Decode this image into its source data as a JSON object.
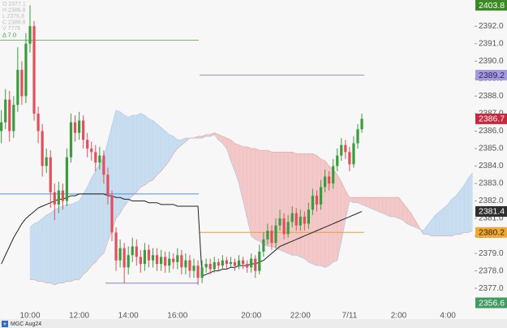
{
  "chart_data": {
    "type": "candlestick",
    "symbol": "MGC Aug24",
    "legend_lines": [
      "O 2377.1",
      "H 2386.8",
      "L 2376.8",
      "C 2386.8",
      "V 7776"
    ],
    "delta": "Δ   7.0",
    "up_color": "#3d9b3f",
    "down_color": "#e0505a",
    "categories": [
      null,
      null,
      null,
      null,
      null,
      null,
      null,
      "10:00",
      null,
      null,
      null,
      null,
      null,
      null,
      null,
      null,
      null,
      null,
      null,
      "12:00",
      null,
      null,
      null,
      null,
      null,
      null,
      null,
      null,
      null,
      null,
      null,
      "14:00",
      null,
      null,
      null,
      null,
      null,
      null,
      null,
      null,
      null,
      null,
      null,
      "16:00",
      null,
      null,
      null,
      null,
      null,
      null,
      null,
      null,
      null,
      null,
      null,
      null,
      null,
      null,
      null,
      null,
      null,
      "20:00",
      null,
      null,
      null,
      null,
      null,
      null,
      null,
      null,
      null,
      null,
      null,
      "22:00",
      null,
      null,
      null,
      null,
      null,
      null,
      null,
      null,
      null,
      null,
      null,
      "7/11",
      null,
      null,
      null,
      null,
      null,
      null,
      null,
      null,
      null,
      null,
      null,
      "2:00",
      null,
      null,
      null,
      null,
      null,
      null,
      null,
      null,
      null,
      null,
      null,
      "4:00",
      null,
      null,
      null,
      null,
      null,
      null
    ],
    "open": [
      2386.0,
      2386.5,
      2387.8,
      2386.0,
      2387.5,
      2389.5,
      2388.0,
      2391.0,
      2392.0,
      2387.0,
      2386.0,
      2384.0,
      2384.5,
      2382.5,
      2381.8,
      2382.6,
      2382.0,
      2384.5,
      2386.5,
      2385.9,
      2386.6,
      2385.5,
      2385.0,
      2384.8,
      2384.2,
      2384.6,
      2383.5,
      2382.3,
      2380.2,
      2378.6,
      2379.3,
      2378.2,
      2378.9,
      2379.4,
      2378.8,
      2378.4,
      2379.2,
      2378.6,
      2378.9,
      2378.4,
      2378.8,
      2378.3,
      2378.7,
      2378.5,
      2378.9,
      2378.2,
      2378.6,
      2378.0,
      2378.3,
      2377.6,
      2378.2,
      2378.4,
      2378.1,
      2378.5,
      2378.3,
      2378.6,
      2378.4,
      2378.5,
      2378.3,
      2378.6,
      2378.4,
      2378.2,
      2378.7,
      2378.0,
      2379.1,
      2379.8,
      2380.3,
      2379.6,
      2380.6,
      2381.0,
      2380.1,
      2380.8,
      2381.3,
      2380.6,
      2381.1,
      2380.7,
      2381.5,
      2382.3,
      2381.8,
      2382.8,
      2383.4,
      2383.0,
      2384.0,
      2384.6,
      2385.2,
      2384.8,
      2384.1,
      2385.3,
      2386.1,
      null,
      null,
      null,
      null,
      null,
      null,
      null,
      null,
      null,
      null,
      null,
      null,
      null,
      null,
      null,
      null,
      null,
      null,
      null,
      null,
      null,
      null,
      null,
      null,
      null,
      null,
      null
    ],
    "high": [
      2387.2,
      2388.4,
      2388.3,
      2388.0,
      2390.8,
      2390.0,
      2391.6,
      2393.2,
      2392.3,
      2387.4,
      2386.4,
      2385.0,
      2384.9,
      2383.0,
      2383.1,
      2383.0,
      2385.0,
      2387.0,
      2386.9,
      2387.1,
      2386.9,
      2385.9,
      2385.4,
      2385.2,
      2385.1,
      2384.9,
      2383.9,
      2382.6,
      2380.5,
      2379.8,
      2379.6,
      2379.4,
      2379.9,
      2379.8,
      2379.2,
      2379.6,
      2379.5,
      2379.3,
      2379.3,
      2379.2,
      2379.1,
      2379.1,
      2379.0,
      2379.3,
      2379.2,
      2379.0,
      2378.9,
      2378.7,
      2378.6,
      2378.6,
      2378.7,
      2378.7,
      2378.8,
      2378.7,
      2378.9,
      2378.8,
      2378.8,
      2378.7,
      2378.9,
      2378.8,
      2378.6,
      2379.0,
      2378.9,
      2379.5,
      2380.2,
      2380.7,
      2380.6,
      2381.0,
      2381.5,
      2381.3,
      2381.2,
      2381.7,
      2381.6,
      2381.5,
      2381.4,
      2381.9,
      2382.7,
      2382.6,
      2383.2,
      2383.8,
      2383.7,
      2384.4,
      2385.0,
      2385.6,
      2385.5,
      2385.1,
      2385.7,
      2386.4,
      2387.0,
      null,
      null,
      null,
      null,
      null,
      null,
      null,
      null,
      null,
      null,
      null,
      null,
      null,
      null,
      null,
      null,
      null,
      null,
      null,
      null,
      null,
      null,
      null,
      null,
      null,
      null,
      null
    ],
    "low": [
      2385.3,
      2386.1,
      2385.4,
      2385.6,
      2387.1,
      2387.5,
      2387.6,
      2390.5,
      2386.6,
      2385.3,
      2383.4,
      2383.6,
      2381.6,
      2380.9,
      2381.3,
      2381.5,
      2381.7,
      2384.2,
      2385.4,
      2385.5,
      2385.0,
      2384.5,
      2384.3,
      2383.7,
      2383.8,
      2383.0,
      2381.8,
      2379.7,
      2378.0,
      2378.2,
      2377.3,
      2377.8,
      2378.5,
      2378.3,
      2377.9,
      2378.0,
      2378.2,
      2378.2,
      2378.0,
      2378.0,
      2377.9,
      2377.9,
      2378.1,
      2378.1,
      2377.8,
      2377.8,
      2377.6,
      2377.6,
      2377.2,
      2377.3,
      2377.9,
      2377.8,
      2377.9,
      2378.0,
      2378.1,
      2378.1,
      2378.2,
      2378.0,
      2378.1,
      2378.1,
      2377.9,
      2377.9,
      2377.6,
      2377.8,
      2378.8,
      2379.5,
      2379.2,
      2379.3,
      2380.3,
      2379.8,
      2379.9,
      2380.5,
      2380.3,
      2380.3,
      2380.3,
      2380.4,
      2381.2,
      2381.4,
      2381.5,
      2382.5,
      2382.6,
      2382.7,
      2383.7,
      2384.3,
      2384.4,
      2383.7,
      2383.9,
      2385.0,
      2385.9,
      null,
      null,
      null,
      null,
      null,
      null,
      null,
      null,
      null,
      null,
      null,
      null,
      null,
      null,
      null,
      null,
      null,
      null,
      null,
      null,
      null,
      null,
      null,
      null,
      null,
      null,
      null
    ],
    "close": [
      2386.5,
      2387.8,
      2386.0,
      2387.5,
      2389.5,
      2388.0,
      2391.0,
      2392.0,
      2387.0,
      2386.0,
      2384.0,
      2384.5,
      2382.5,
      2381.8,
      2382.6,
      2382.0,
      2384.5,
      2386.5,
      2385.9,
      2386.6,
      2385.5,
      2385.0,
      2384.8,
      2384.2,
      2384.6,
      2383.5,
      2382.3,
      2380.2,
      2378.6,
      2379.3,
      2378.2,
      2378.9,
      2379.4,
      2378.8,
      2378.4,
      2379.2,
      2378.6,
      2378.9,
      2378.4,
      2378.8,
      2378.3,
      2378.7,
      2378.5,
      2378.9,
      2378.2,
      2378.6,
      2378.0,
      2378.3,
      2377.6,
      2378.2,
      2378.4,
      2378.1,
      2378.5,
      2378.3,
      2378.6,
      2378.4,
      2378.5,
      2378.3,
      2378.6,
      2378.4,
      2378.2,
      2378.7,
      2378.0,
      2379.1,
      2379.8,
      2380.3,
      2379.6,
      2380.6,
      2381.0,
      2380.1,
      2380.8,
      2381.3,
      2380.6,
      2381.1,
      2380.7,
      2381.5,
      2382.3,
      2381.8,
      2382.8,
      2383.4,
      2383.0,
      2384.0,
      2384.6,
      2385.2,
      2384.8,
      2384.1,
      2385.3,
      2386.1,
      2386.7,
      null,
      null,
      null,
      null,
      null,
      null,
      null,
      null,
      null,
      null,
      null,
      null,
      null,
      null,
      null,
      null,
      null,
      null,
      null,
      null,
      null,
      null,
      null,
      null,
      null,
      null,
      null
    ],
    "vwap": {
      "color": "#222222",
      "values": [
        2378.4,
        2378.9,
        2379.4,
        2379.9,
        2380.3,
        2380.7,
        2381.0,
        2381.2,
        2381.4,
        2381.6,
        2381.7,
        2381.8,
        2381.9,
        2382.0,
        2382.1,
        2382.1,
        2382.2,
        2382.3,
        2382.3,
        2382.4,
        2382.4,
        2382.4,
        2382.4,
        2382.4,
        2382.4,
        2382.4,
        2382.3,
        2382.3,
        2382.2,
        2382.2,
        2382.1,
        2382.1,
        2382.0,
        2382.0,
        2382.0,
        2382.0,
        2381.9,
        2381.9,
        2381.9,
        2381.8,
        2381.8,
        2381.8,
        2381.8,
        2381.7,
        2381.7,
        2381.7,
        2381.7,
        2381.7,
        2381.7,
        2377.7,
        2377.8,
        2377.9,
        2378.0,
        2378.0,
        2378.1,
        2378.1,
        2378.2,
        2378.2,
        2378.3,
        2378.3,
        2378.3,
        2378.4,
        2378.4,
        2378.5,
        2378.6,
        2378.8,
        2379.0,
        2379.2,
        2379.4,
        2379.5,
        2379.6,
        2379.7,
        2379.8,
        2379.9,
        2380.0,
        2380.1,
        2380.2,
        2380.3,
        2380.4,
        2380.5,
        2380.6,
        2380.7,
        2380.8,
        2380.9,
        2381.0,
        2381.1,
        2381.2,
        2381.3,
        2381.4,
        null,
        null,
        null,
        null,
        null,
        null,
        null,
        null,
        null,
        null,
        null,
        null,
        null,
        null,
        null,
        null,
        null,
        null,
        null,
        null,
        null,
        null,
        null,
        null,
        null,
        null,
        null
      ]
    },
    "cloud": {
      "up_color": "#b9d6ee",
      "down_color": "#f2b9b9",
      "span_a": [
        null,
        null,
        null,
        null,
        null,
        null,
        null,
        2380.5,
        2380.7,
        2380.8,
        2381.0,
        2381.2,
        2381.3,
        2381.5,
        2381.6,
        2381.7,
        2381.8,
        2381.8,
        2381.9,
        2382.0,
        2382.4,
        2382.8,
        2383.3,
        2383.7,
        2384.1,
        2384.5,
        2385.4,
        2386.3,
        2387.2,
        2387.1,
        2386.9,
        2386.8,
        2386.9,
        2386.9,
        2387.0,
        2386.9,
        2386.7,
        2386.6,
        2386.4,
        2386.2,
        2386.0,
        2385.8,
        2385.7,
        2385.5,
        2385.5,
        2385.6,
        2385.6,
        2385.6,
        2385.6,
        2385.6,
        2385.7,
        2385.7,
        2385.8,
        2385.5,
        2385.3,
        2385.0,
        2384.3,
        2383.7,
        2383.0,
        2382.0,
        2381.0,
        2380.0,
        2379.8,
        2379.7,
        2379.5,
        2379.4,
        2379.4,
        2379.3,
        2379.2,
        2379.1,
        2379.0,
        2378.9,
        2378.9,
        2378.8,
        2378.7,
        2378.5,
        2378.4,
        2378.3,
        2378.3,
        2378.2,
        2378.3,
        2378.5,
        2378.6,
        2379.7,
        2380.9,
        2382.0,
        2381.9,
        2381.9,
        2381.8,
        2381.7,
        2381.6,
        2381.5,
        2381.4,
        2381.3,
        2381.2,
        2381.1,
        2381.1,
        2381.0,
        2380.9,
        2380.7,
        2380.6,
        2380.5,
        2380.4,
        2380.3,
        2380.6,
        2380.9,
        2381.2,
        2381.4,
        2381.6,
        2381.8,
        2382.1,
        2382.3,
        2382.6,
        2382.9,
        2383.3,
        2383.6
      ],
      "span_b": [
        null,
        null,
        null,
        null,
        null,
        null,
        null,
        2377.5,
        2377.5,
        2377.4,
        2377.4,
        2377.3,
        2377.3,
        2377.2,
        2377.3,
        2377.3,
        2377.4,
        2377.4,
        2377.5,
        2377.5,
        2377.8,
        2378.0,
        2378.3,
        2378.5,
        2378.8,
        2379.0,
        2379.7,
        2380.3,
        2381.0,
        2381.3,
        2381.7,
        2382.0,
        2382.3,
        2382.5,
        2382.8,
        2382.9,
        2383.1,
        2383.2,
        2383.5,
        2383.7,
        2384.0,
        2384.3,
        2384.7,
        2385.0,
        2385.2,
        2385.4,
        2385.6,
        2385.6,
        2385.7,
        2385.7,
        2385.8,
        2385.8,
        2385.9,
        2385.8,
        2385.7,
        2385.6,
        2385.5,
        2385.3,
        2385.2,
        2385.1,
        2385.1,
        2385.0,
        2385.0,
        2384.9,
        2384.9,
        2384.9,
        2384.8,
        2384.8,
        2384.8,
        2384.8,
        2384.8,
        2384.8,
        2384.7,
        2384.7,
        2384.7,
        2384.7,
        2384.7,
        2384.6,
        2384.4,
        2384.3,
        2384.0,
        2383.8,
        2383.5,
        2383.1,
        2382.6,
        2382.2,
        2382.2,
        2382.2,
        2382.2,
        2382.2,
        2382.2,
        2382.2,
        2382.2,
        2382.2,
        2382.2,
        2382.2,
        2382.2,
        2382.2,
        2381.9,
        2381.6,
        2381.3,
        2380.9,
        2380.5,
        2380.1,
        2380.1,
        2380.0,
        2380.0,
        2380.0,
        2380.0,
        2380.0,
        2380.0,
        2380.1,
        2380.1,
        2380.2,
        2380.2,
        2380.3
      ]
    },
    "levels": [
      {
        "value": 2391.2,
        "color": "#7fb06a"
      },
      {
        "value": 2382.4,
        "color": "#5b8fd0"
      },
      {
        "value": 2377.3,
        "color": "#8a7fd0"
      },
      {
        "value": 2389.2,
        "color": "#9a90c8"
      },
      {
        "value": 2380.2,
        "color": "#e0a040"
      }
    ],
    "price_tags": [
      {
        "value": 2389.2,
        "color": "#a598e0",
        "text_color": "#2a2a55"
      },
      {
        "value": 2386.7,
        "color": "#c8283c",
        "text_color": "#ffffff"
      },
      {
        "value": 2381.4,
        "color": "#2e2e2e",
        "text_color": "#ffffff"
      },
      {
        "value": 2380.2,
        "color": "#f0a838",
        "text_color": "#3a2a00"
      }
    ],
    "edge_tags": [
      {
        "value": 2403.8,
        "color": "#3a8a24",
        "text_color": "#ffffff"
      },
      {
        "value": 2356.6,
        "color": "#3f9a62",
        "text_color": "#ffffff"
      }
    ],
    "ylim": [
      2375.8,
      2393.5
    ],
    "yticks": [
      {
        "value": 2377,
        "label": "2377.0"
      },
      {
        "value": 2378,
        "label": "2378.0"
      },
      {
        "value": 2379,
        "label": "2379.0"
      },
      {
        "value": 2380,
        "label": "2380.0"
      },
      {
        "value": 2381,
        "label": "2381.0"
      },
      {
        "value": 2382,
        "label": "2382.0"
      },
      {
        "value": 2383,
        "label": "2383.0"
      },
      {
        "value": 2384,
        "label": "2384.0"
      },
      {
        "value": 2385,
        "label": "2385.0"
      },
      {
        "value": 2386,
        "label": "2386.0"
      },
      {
        "value": 2387,
        "label": "2387.0"
      },
      {
        "value": 2388,
        "label": "2388.0"
      },
      {
        "value": 2389,
        "label": "2389.0"
      },
      {
        "value": 2390,
        "label": "2390.0"
      },
      {
        "value": 2391,
        "label": "2391.0"
      },
      {
        "value": 2392,
        "label": "2392.0"
      }
    ]
  }
}
